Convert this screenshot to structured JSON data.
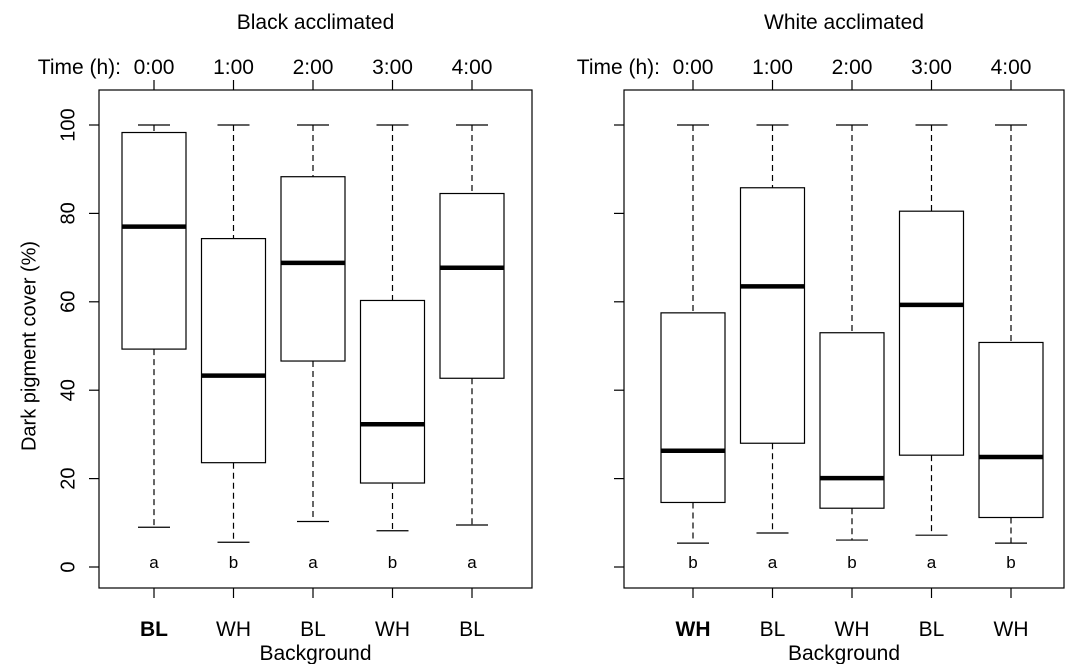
{
  "chart_data": [
    {
      "type": "box",
      "title": "Black acclimated",
      "time_axis_label": "Time (h):",
      "time_ticks": [
        "0:00",
        "1:00",
        "2:00",
        "3:00",
        "4:00"
      ],
      "categories": [
        "BL",
        "WH",
        "BL",
        "WH",
        "BL"
      ],
      "bold_categories": [
        0
      ],
      "xlabel": "Background",
      "ylabel": "Dark pigment cover (%)",
      "ylim": [
        0,
        100
      ],
      "yticks": [
        0,
        20,
        40,
        60,
        80,
        100
      ],
      "boxes": [
        {
          "whisker_low": 9,
          "q1": 49.3,
          "median": 77,
          "q3": 98.3,
          "whisker_high": 100,
          "group": "a"
        },
        {
          "whisker_low": 5.6,
          "q1": 23.6,
          "median": 43.3,
          "q3": 74.3,
          "whisker_high": 100,
          "group": "b"
        },
        {
          "whisker_low": 10.3,
          "q1": 46.6,
          "median": 68.8,
          "q3": 88.3,
          "whisker_high": 100,
          "group": "a"
        },
        {
          "whisker_low": 8.2,
          "q1": 19,
          "median": 32.3,
          "q3": 60.3,
          "whisker_high": 100,
          "group": "b"
        },
        {
          "whisker_low": 9.5,
          "q1": 42.7,
          "median": 67.7,
          "q3": 84.5,
          "whisker_high": 100,
          "group": "a"
        }
      ]
    },
    {
      "type": "box",
      "title": "White acclimated",
      "time_axis_label": "Time (h):",
      "time_ticks": [
        "0:00",
        "1:00",
        "2:00",
        "3:00",
        "4:00"
      ],
      "categories": [
        "WH",
        "BL",
        "WH",
        "BL",
        "WH"
      ],
      "bold_categories": [
        0
      ],
      "xlabel": "Background",
      "ylabel": "",
      "ylim": [
        0,
        100
      ],
      "yticks": [
        0,
        20,
        40,
        60,
        80,
        100
      ],
      "boxes": [
        {
          "whisker_low": 5.4,
          "q1": 14.6,
          "median": 26.3,
          "q3": 57.5,
          "whisker_high": 100,
          "group": "b"
        },
        {
          "whisker_low": 7.7,
          "q1": 28,
          "median": 63.5,
          "q3": 85.8,
          "whisker_high": 100,
          "group": "a"
        },
        {
          "whisker_low": 6.1,
          "q1": 13.3,
          "median": 20.1,
          "q3": 53,
          "whisker_high": 100,
          "group": "b"
        },
        {
          "whisker_low": 7.2,
          "q1": 25.3,
          "median": 59.3,
          "q3": 80.5,
          "whisker_high": 100,
          "group": "a"
        },
        {
          "whisker_low": 5.4,
          "q1": 11.2,
          "median": 24.9,
          "q3": 50.8,
          "whisker_high": 100,
          "group": "b"
        }
      ]
    }
  ]
}
